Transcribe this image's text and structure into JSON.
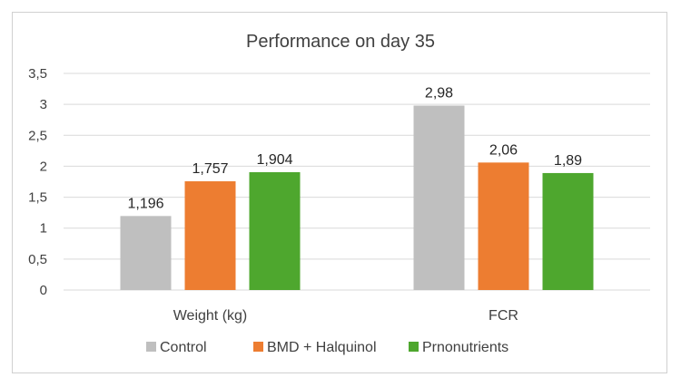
{
  "chart_data": {
    "type": "bar",
    "title": "Performance on day 35",
    "categories": [
      "Weight (kg)",
      "FCR"
    ],
    "series": [
      {
        "name": "Control",
        "color": "#bfbfbf",
        "values": [
          1.196,
          2.98
        ],
        "labels": [
          "1,196",
          "2,98"
        ]
      },
      {
        "name": "BMD + Halquinol",
        "color": "#ed7d31",
        "values": [
          1.757,
          2.06
        ],
        "labels": [
          "1,757",
          "2,06"
        ]
      },
      {
        "name": "Prnonutrients",
        "color": "#4ea72e",
        "values": [
          1.904,
          1.89
        ],
        "labels": [
          "1,904",
          "1,89"
        ]
      }
    ],
    "ylim": [
      0,
      3.5
    ],
    "yticks": [
      {
        "value": 0,
        "label": "0"
      },
      {
        "value": 0.5,
        "label": "0,5"
      },
      {
        "value": 1,
        "label": "1"
      },
      {
        "value": 1.5,
        "label": "1,5"
      },
      {
        "value": 2,
        "label": "2"
      },
      {
        "value": 2.5,
        "label": "2,5"
      },
      {
        "value": 3,
        "label": "3"
      },
      {
        "value": 3.5,
        "label": "3,5"
      }
    ],
    "grid": true,
    "legend_position": "bottom"
  }
}
